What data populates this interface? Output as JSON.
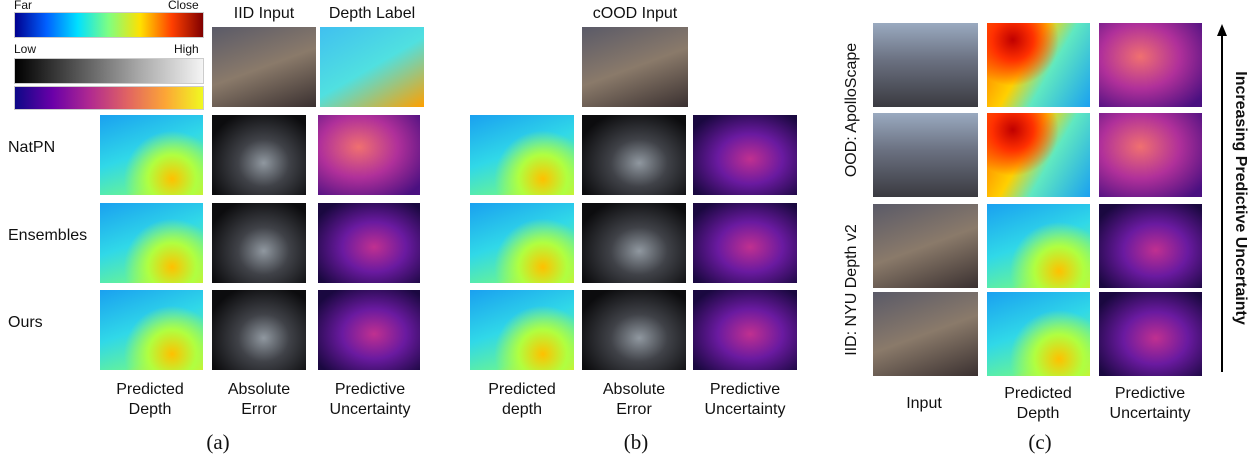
{
  "colorbars": {
    "depth": {
      "left": "Far",
      "right": "Close"
    },
    "uncertainty": {
      "left": "Low",
      "right": "High"
    }
  },
  "panel_a": {
    "top_headers": [
      "IID Input",
      "Depth Label"
    ],
    "rows": [
      "NatPN",
      "Ensembles",
      "Ours"
    ],
    "column_labels": [
      [
        "Predicted",
        "Depth"
      ],
      [
        "Absolute",
        "Error"
      ],
      [
        "Predictive",
        "Uncertainty"
      ]
    ],
    "caption": "(a)"
  },
  "panel_b": {
    "top_header": "cOOD Input",
    "column_labels": [
      [
        "Predicted",
        "depth"
      ],
      [
        "Absolute",
        "Error"
      ],
      [
        "Predictive",
        "Uncertainty"
      ]
    ],
    "caption": "(b)"
  },
  "panel_c": {
    "row_groups": [
      "OOD: ApolloScape",
      "IID: NYU Depth v2"
    ],
    "column_labels": [
      [
        "Input"
      ],
      [
        "Predicted",
        "Depth"
      ],
      [
        "Predictive",
        "Uncertainty"
      ]
    ],
    "arrow_label": "Increasing Predictive Uncertainty",
    "caption": "(c)"
  }
}
